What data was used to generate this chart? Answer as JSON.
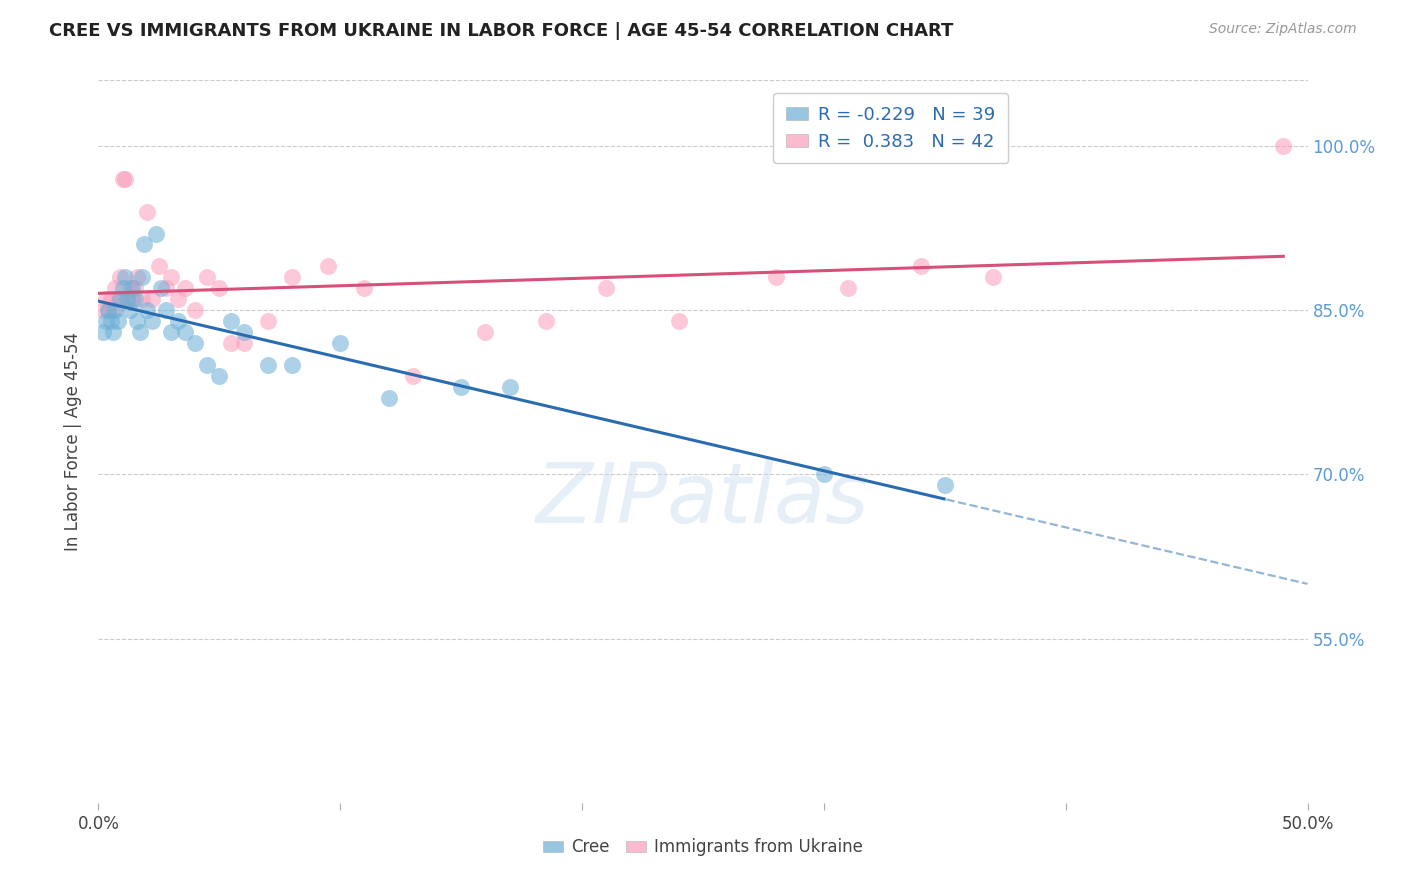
{
  "title": "CREE VS IMMIGRANTS FROM UKRAINE IN LABOR FORCE | AGE 45-54 CORRELATION CHART",
  "source": "Source: ZipAtlas.com",
  "ylabel": "In Labor Force | Age 45-54",
  "xlim": [
    0.0,
    0.5
  ],
  "ylim": [
    0.4,
    1.06
  ],
  "yticks": [
    0.55,
    0.7,
    0.85,
    1.0
  ],
  "ytick_labels": [
    "55.0%",
    "70.0%",
    "85.0%",
    "100.0%"
  ],
  "xticks": [
    0.0,
    0.1,
    0.2,
    0.3,
    0.4,
    0.5
  ],
  "xtick_labels": [
    "0.0%",
    "",
    "",
    "",
    "",
    "50.0%"
  ],
  "cree_color": "#6baed6",
  "ukraine_color": "#fc9dba",
  "cree_line_color": "#2b6cb0",
  "ukraine_line_color": "#d6507a",
  "cree_R": -0.229,
  "cree_N": 39,
  "ukraine_R": 0.383,
  "ukraine_N": 42,
  "cree_x": [
    0.002,
    0.003,
    0.004,
    0.005,
    0.006,
    0.007,
    0.008,
    0.009,
    0.01,
    0.011,
    0.012,
    0.013,
    0.014,
    0.015,
    0.016,
    0.017,
    0.018,
    0.019,
    0.02,
    0.022,
    0.024,
    0.026,
    0.028,
    0.03,
    0.033,
    0.036,
    0.04,
    0.045,
    0.05,
    0.055,
    0.06,
    0.07,
    0.08,
    0.1,
    0.12,
    0.15,
    0.17,
    0.3,
    0.35
  ],
  "cree_y": [
    0.83,
    0.84,
    0.85,
    0.84,
    0.83,
    0.85,
    0.84,
    0.86,
    0.87,
    0.88,
    0.86,
    0.85,
    0.87,
    0.86,
    0.84,
    0.83,
    0.88,
    0.91,
    0.85,
    0.84,
    0.92,
    0.87,
    0.85,
    0.83,
    0.84,
    0.83,
    0.82,
    0.8,
    0.79,
    0.84,
    0.83,
    0.8,
    0.8,
    0.82,
    0.77,
    0.78,
    0.78,
    0.7,
    0.69
  ],
  "ukraine_x": [
    0.002,
    0.003,
    0.004,
    0.005,
    0.006,
    0.007,
    0.008,
    0.009,
    0.01,
    0.011,
    0.012,
    0.013,
    0.014,
    0.015,
    0.016,
    0.018,
    0.02,
    0.022,
    0.025,
    0.028,
    0.03,
    0.033,
    0.036,
    0.04,
    0.045,
    0.05,
    0.055,
    0.06,
    0.07,
    0.08,
    0.095,
    0.11,
    0.13,
    0.16,
    0.185,
    0.21,
    0.24,
    0.28,
    0.31,
    0.34,
    0.37,
    0.49
  ],
  "ukraine_y": [
    0.85,
    0.86,
    0.85,
    0.86,
    0.85,
    0.87,
    0.86,
    0.88,
    0.97,
    0.97,
    0.86,
    0.87,
    0.86,
    0.87,
    0.88,
    0.86,
    0.94,
    0.86,
    0.89,
    0.87,
    0.88,
    0.86,
    0.87,
    0.85,
    0.88,
    0.87,
    0.82,
    0.82,
    0.84,
    0.88,
    0.89,
    0.87,
    0.79,
    0.83,
    0.84,
    0.87,
    0.84,
    0.88,
    0.87,
    0.89,
    0.88,
    1.0
  ],
  "watermark": "ZIPatlas",
  "background_color": "#ffffff",
  "grid_color": "#cccccc"
}
